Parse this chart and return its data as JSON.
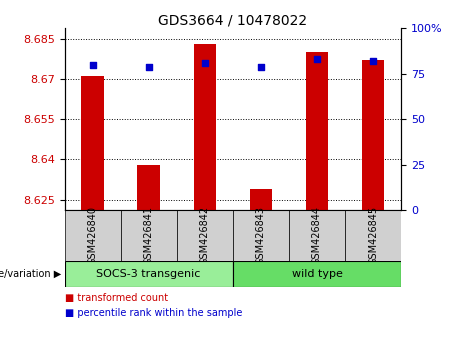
{
  "title": "GDS3664 / 10478022",
  "samples": [
    "GSM426840",
    "GSM426841",
    "GSM426842",
    "GSM426843",
    "GSM426844",
    "GSM426845"
  ],
  "transformed_counts": [
    8.671,
    8.638,
    8.683,
    8.629,
    8.68,
    8.677
  ],
  "percentile_ranks": [
    80,
    79,
    81,
    79,
    83,
    82
  ],
  "ylim_left": [
    8.621,
    8.689
  ],
  "yticks_left": [
    8.625,
    8.64,
    8.655,
    8.67,
    8.685
  ],
  "ylim_right": [
    0,
    100
  ],
  "yticks_right": [
    0,
    25,
    50,
    75,
    100
  ],
  "ytick_labels_right": [
    "0",
    "25",
    "50",
    "75",
    "100%"
  ],
  "bar_color": "#cc0000",
  "dot_color": "#0000cc",
  "group1_label": "SOCS-3 transgenic",
  "group2_label": "wild type",
  "group1_color": "#99ee99",
  "group2_color": "#66dd66",
  "genotype_label": "genotype/variation",
  "legend_red": "transformed count",
  "legend_blue": "percentile rank within the sample",
  "grid_color": "#000000",
  "sample_box_color": "#d0d0d0",
  "plot_bg": "#ffffff"
}
